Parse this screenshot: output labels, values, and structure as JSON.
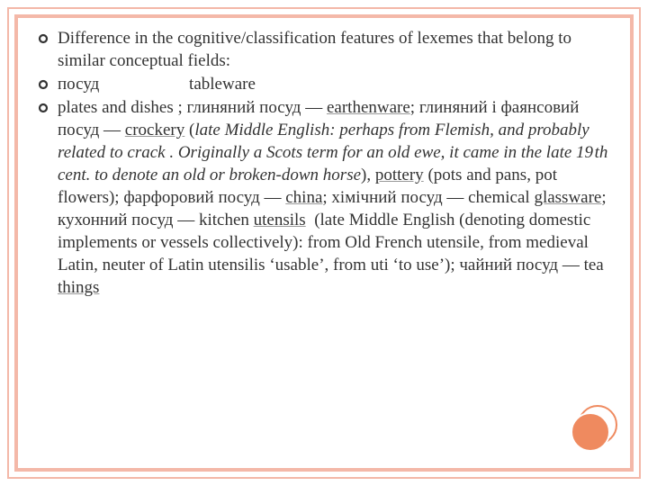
{
  "slide": {
    "border_color": "#f4b8a8",
    "accent_color": "#ef8a5f",
    "text_color": "#333333",
    "font_family": "Georgia",
    "font_size_pt": 14,
    "bullets": [
      {
        "segments": [
          {
            "text": "Difference in the cognitive/classification features of lexemes that belong to similar conceptual fields:"
          }
        ]
      },
      {
        "segments": [
          {
            "text": "посуд                     tableware"
          }
        ]
      },
      {
        "segments": [
          {
            "text": "plates and dishes ; глиняний посуд — "
          },
          {
            "text": "earthenware",
            "style": "u"
          },
          {
            "text": "; глиняний і фаянсовий посуд — "
          },
          {
            "text": "crockery",
            "style": "u"
          },
          {
            "text": " ("
          },
          {
            "text": "late Middle English: perhaps from Flemish, and probably related to crack . Originally a Scots term for an old ewe, it came in the late 19 th cent. to denote an old or broken-down horse",
            "style": "it"
          },
          {
            "text": "), "
          },
          {
            "text": "pottery",
            "style": "u"
          },
          {
            "text": " (pots and pans, pot flowers); фарфоровий посуд — "
          },
          {
            "text": "china",
            "style": "u"
          },
          {
            "text": "; хімічний посуд — chemical "
          },
          {
            "text": "glassware",
            "style": "u"
          },
          {
            "text": "; кухонний посуд — kitchen "
          },
          {
            "text": "utensils",
            "style": "u"
          },
          {
            "text": "  (late Middle English (denoting domestic implements or vessels collectively): from Old French utensile, from medieval Latin, neuter of Latin utensilis ‘usable’, from uti ‘to use’); чайний посуд — tea "
          },
          {
            "text": "things",
            "style": "u"
          }
        ]
      }
    ]
  }
}
